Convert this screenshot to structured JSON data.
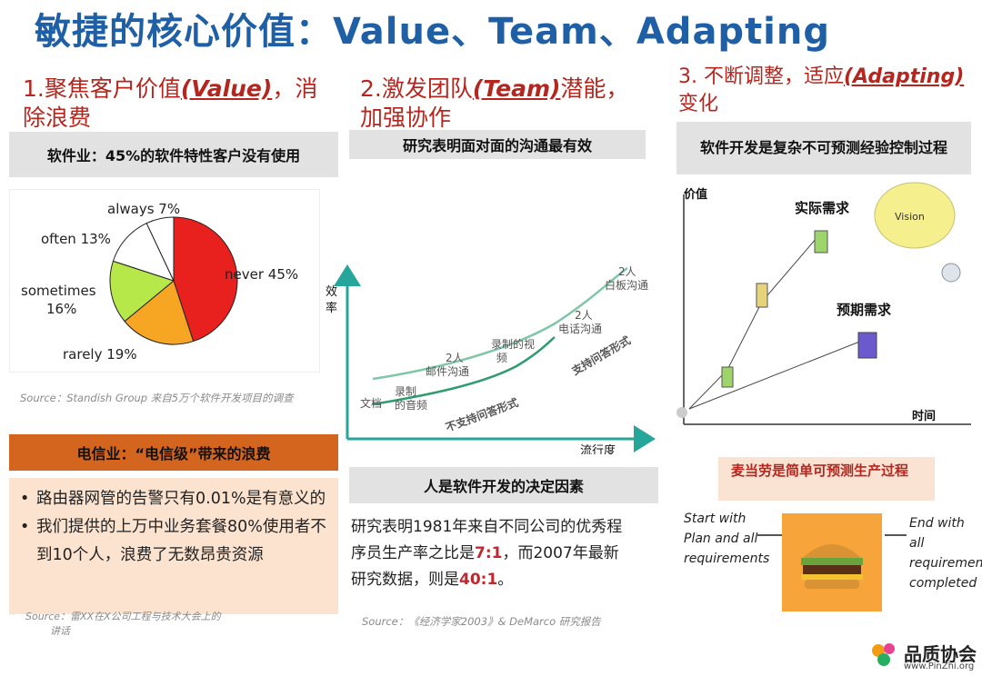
{
  "title": "敏捷的核心价值：Value、Team、Adapting",
  "section1": {
    "heading_prefix": "1.聚焦客户价值",
    "heading_em": "(Value)",
    "heading_suffix": "，消",
    "heading_line2": "除浪费",
    "grey_box": "软件业：45%的软件特性客户没有使用",
    "source": "Source：Standish Group 来自5万个软件开发项目的调查",
    "telecom_box": "电信业：“电信级”带来的浪费",
    "bullets": [
      "路由器网管的告警只有0.01%是有意义的",
      "我们提供的上万中业务套餐80%使用者不到10个人，浪费了无数昂贵资源"
    ],
    "bottom_source_line1": "Source：雷XX在X公司工程与技术大会上的",
    "bottom_source_line2": "讲话"
  },
  "chart_data": {
    "type": "pie",
    "categories": [
      "never",
      "rarely",
      "sometimes",
      "often",
      "always"
    ],
    "values": [
      45,
      19,
      16,
      13,
      7
    ],
    "labels": [
      "never 45%",
      "rarely 19%",
      "sometimes 16%",
      "often 13%",
      "always 7%"
    ],
    "colors": [
      "#e8211f",
      "#f6a623",
      "#b7e84a",
      "#ffffff",
      "#ffffff"
    ]
  },
  "section2": {
    "heading_prefix": "2.激发团队",
    "heading_em": "(Team)",
    "heading_suffix": "潜能，",
    "heading_line2": "加强协作",
    "grey_box": "研究表明面对面的沟通最有效",
    "y_axis": "效率",
    "x_axis": "流行度",
    "labels": {
      "doc": "文档",
      "recorded_audio_1": "录制",
      "recorded_audio_2": "的音频",
      "email_1": "2人",
      "email_2": "邮件沟通",
      "video_1": "录制的视",
      "video_2": "频",
      "phone_1": "2人",
      "phone_2": "电话沟通",
      "whiteboard_1": "2人",
      "whiteboard_2": "白板沟通",
      "no_qa": "不支持问答形式",
      "qa": "支持问答形式"
    },
    "box2": "人是软件开发的决定因素",
    "para_line1": "研究表明1981年来自不同公司的优秀程",
    "para_line2": "序员生产率之比是",
    "ratio1": "7:1",
    "para_mid": "，而2007年最新",
    "para_line3": "研究数据，则是",
    "ratio2": "40:1",
    "para_end": "。",
    "source": "Source：《经济学家2003》& DeMarco 研究报告"
  },
  "section3": {
    "heading_prefix": "3. 不断调整，适应",
    "heading_em": "(Adapting)",
    "heading_line2": "变化",
    "grey_box": "软件开发是复杂不可预测经验控制过程",
    "y_axis": "价值",
    "x_axis": "时间",
    "actual": "实际需求",
    "expected": "预期需求",
    "vision": "Vision",
    "mcd_box": "麦当劳是简单可预测生产过程",
    "start_text": [
      "Start with",
      "Plan and all",
      "requirements"
    ],
    "end_text": [
      "End with all",
      "requirements",
      "completed"
    ]
  },
  "logo": {
    "name": "品质协会",
    "url": "www.PinZhi.org"
  }
}
